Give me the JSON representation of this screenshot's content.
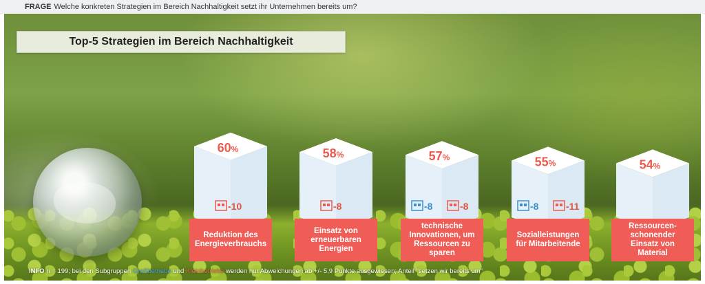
{
  "question": {
    "prefix": "FRAGE",
    "text": "Welche konkreten Strategien im Bereich Nachhaltigkeit setzt ihr Unternehmen bereits um?"
  },
  "title": "Top-5 Strategien im Bereich Nachhaltigkeit",
  "info": {
    "prefix": "INFO",
    "text1": "n = 199; bei den Subgruppen",
    "group1": "Großbetriebe",
    "mid": "und",
    "group2": "Kleinbetriebe",
    "text2": "werden nur Abweichungen ab +/- 5,9 Punkte ausgewiesen; Anteil \"setzen wir bereits um\""
  },
  "colors": {
    "bar_face": "#dbe9f4",
    "bar_top": "#ffffff",
    "label_bg": "#ef5d56",
    "value_text": "#ee5a4e",
    "icon_blue": "#3a8fd1",
    "icon_red": "#ee5a4e",
    "delta_text": "#e0553f"
  },
  "chart_data": {
    "type": "bar",
    "title": "Top-5 Strategien im Bereich Nachhaltigkeit",
    "categories": [
      "Reduktion des Energieverbrauchs",
      "Einsatz von erneuerbaren Energien",
      "technische Innovationen, um Ressourcen zu sparen",
      "Sozialleistungen für Mitarbeitende",
      "Ressourcen-schonender Einsatz von Material"
    ],
    "values": [
      60,
      58,
      57,
      55,
      54
    ],
    "unit": "%",
    "ylim": [
      0,
      100
    ],
    "subgroup_deviations": [
      {
        "large_companies": null,
        "small_companies": "-10"
      },
      {
        "large_companies": null,
        "small_companies": "-8"
      },
      {
        "large_companies": "-8",
        "small_companies": "-8"
      },
      {
        "large_companies": "-8",
        "small_companies": "-11"
      },
      {
        "large_companies": null,
        "small_companies": null
      }
    ]
  }
}
